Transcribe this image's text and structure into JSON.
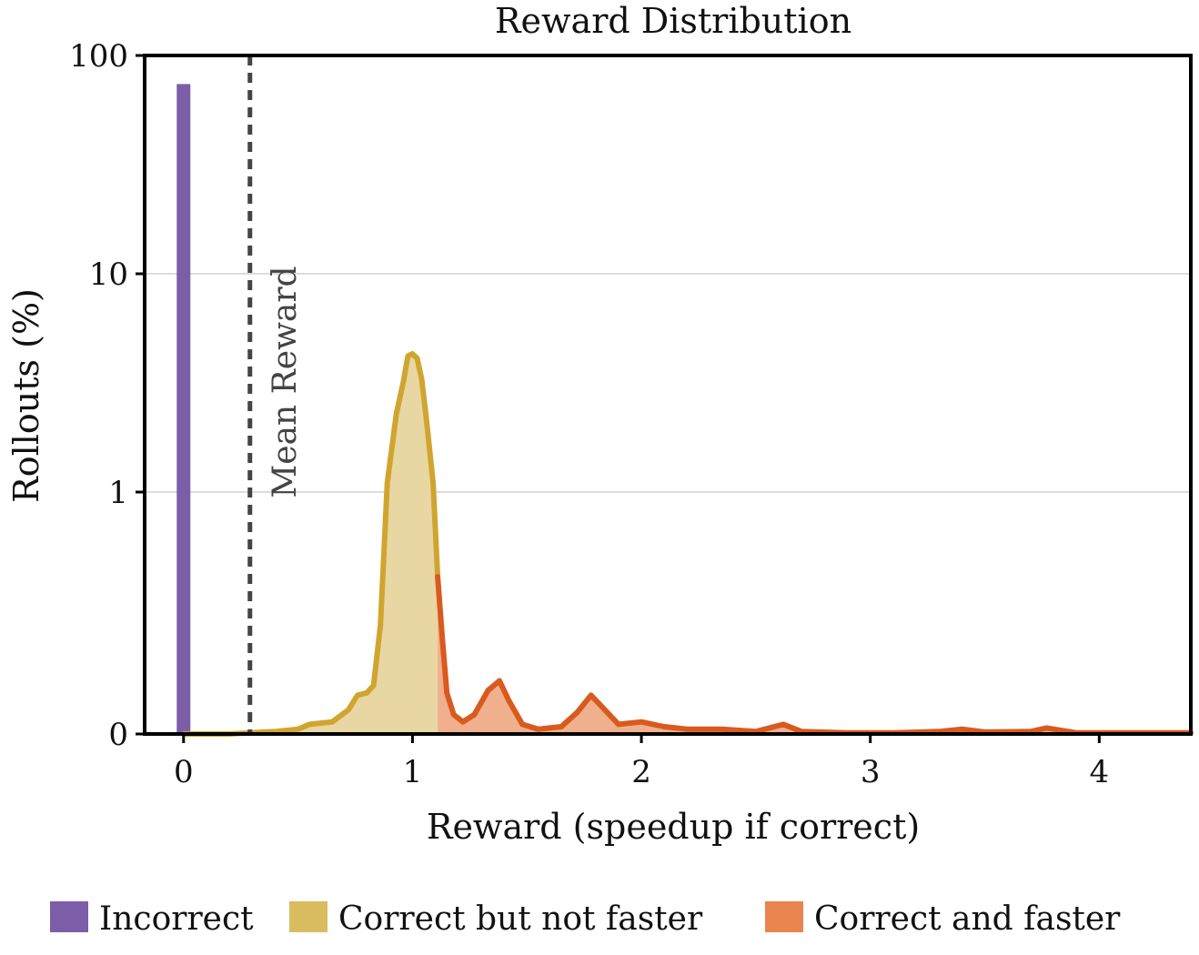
{
  "chart_data": {
    "type": "area",
    "title": "Reward Distribution",
    "xlabel": "Reward (speedup if correct)",
    "ylabel": "Rollouts (%)",
    "xlim": [
      -0.17,
      4.4
    ],
    "x_ticks": [
      0,
      1,
      2,
      3,
      4
    ],
    "x_tick_labels": [
      "0",
      "1",
      "2",
      "3",
      "4"
    ],
    "y_scale": "symlog",
    "y_ticks": [
      0,
      1,
      10,
      100
    ],
    "y_tick_labels": [
      "0",
      "1",
      "10",
      "100"
    ],
    "grid": "horizontal",
    "legend_position": "bottom",
    "mean_reward": {
      "x": 0.29,
      "label": "Mean Reward"
    },
    "incorrect_bar": {
      "name": "Incorrect",
      "color": "#7b5ea7",
      "x": 0,
      "value": 74
    },
    "series": [
      {
        "name": "Correct but not faster",
        "line_color": "#d0a52f",
        "fill_color": "#e8d6a3",
        "points": [
          [
            0,
            0
          ],
          [
            0.2,
            0
          ],
          [
            0.4,
            0.01
          ],
          [
            0.5,
            0.02
          ],
          [
            0.55,
            0.04
          ],
          [
            0.65,
            0.05
          ],
          [
            0.72,
            0.1
          ],
          [
            0.76,
            0.16
          ],
          [
            0.8,
            0.17
          ],
          [
            0.83,
            0.2
          ],
          [
            0.86,
            0.45
          ],
          [
            0.89,
            1.1
          ],
          [
            0.91,
            1.6
          ],
          [
            0.93,
            2.3
          ],
          [
            0.96,
            3.2
          ],
          [
            0.98,
            4.2
          ],
          [
            1.0,
            4.3
          ],
          [
            1.02,
            4.1
          ],
          [
            1.04,
            3.3
          ],
          [
            1.06,
            2.2
          ],
          [
            1.09,
            1.1
          ],
          [
            1.11,
            0.65
          ]
        ]
      },
      {
        "name": "Correct and faster",
        "line_color": "#d95a1e",
        "fill_color": "#f0b08e",
        "points": [
          [
            1.11,
            0.65
          ],
          [
            1.13,
            0.4
          ],
          [
            1.15,
            0.17
          ],
          [
            1.18,
            0.08
          ],
          [
            1.22,
            0.05
          ],
          [
            1.27,
            0.08
          ],
          [
            1.33,
            0.18
          ],
          [
            1.38,
            0.22
          ],
          [
            1.42,
            0.14
          ],
          [
            1.48,
            0.04
          ],
          [
            1.55,
            0.02
          ],
          [
            1.65,
            0.03
          ],
          [
            1.72,
            0.09
          ],
          [
            1.78,
            0.16
          ],
          [
            1.83,
            0.11
          ],
          [
            1.9,
            0.04
          ],
          [
            2.0,
            0.05
          ],
          [
            2.1,
            0.03
          ],
          [
            2.2,
            0.02
          ],
          [
            2.35,
            0.02
          ],
          [
            2.5,
            0.01
          ],
          [
            2.62,
            0.04
          ],
          [
            2.7,
            0.01
          ],
          [
            2.9,
            0.005
          ],
          [
            3.1,
            0.005
          ],
          [
            3.3,
            0.01
          ],
          [
            3.4,
            0.02
          ],
          [
            3.5,
            0.008
          ],
          [
            3.7,
            0.01
          ],
          [
            3.77,
            0.025
          ],
          [
            3.9,
            0.005
          ],
          [
            4.1,
            0.005
          ],
          [
            4.4,
            0.005
          ]
        ]
      }
    ],
    "legend": [
      {
        "label": "Incorrect",
        "color": "#7b5ea7"
      },
      {
        "label": "Correct but not faster",
        "color": "#d9bc5f"
      },
      {
        "label": "Correct and faster",
        "color": "#ea8550"
      }
    ]
  }
}
